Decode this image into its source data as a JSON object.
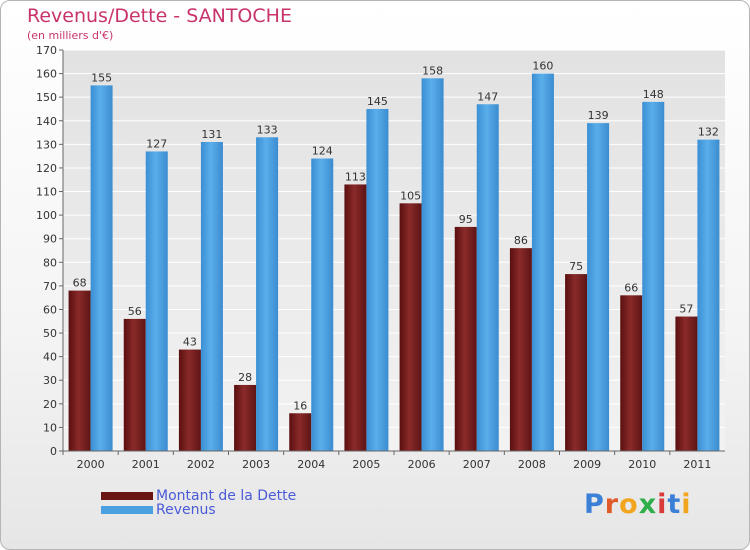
{
  "title": "Revenus/Dette - SANTOCHE",
  "subtitle": "(en milliers d'€)",
  "colors": {
    "dette": "#7a1f1f",
    "revenus": "#4aa0e0",
    "title": "#c8336b",
    "legend_text": "#4a5ad8"
  },
  "logo_text": "Proxiti",
  "chart_data": {
    "type": "bar",
    "title": "Revenus/Dette - SANTOCHE",
    "subtitle": "(en milliers d'€)",
    "categories": [
      "2000",
      "2001",
      "2002",
      "2003",
      "2004",
      "2005",
      "2006",
      "2007",
      "2008",
      "2009",
      "2010",
      "2011"
    ],
    "series": [
      {
        "name": "Montant de la Dette",
        "values": [
          68,
          56,
          43,
          28,
          16,
          113,
          105,
          95,
          86,
          75,
          66,
          57
        ]
      },
      {
        "name": "Revenus",
        "values": [
          155,
          127,
          131,
          133,
          124,
          145,
          158,
          147,
          160,
          139,
          148,
          132
        ]
      }
    ],
    "ylim": [
      0,
      170
    ],
    "yticks": [
      0,
      10,
      20,
      30,
      40,
      50,
      60,
      70,
      80,
      90,
      100,
      110,
      120,
      130,
      140,
      150,
      160,
      170
    ],
    "grid": true,
    "legend_position": "bottom-left"
  }
}
